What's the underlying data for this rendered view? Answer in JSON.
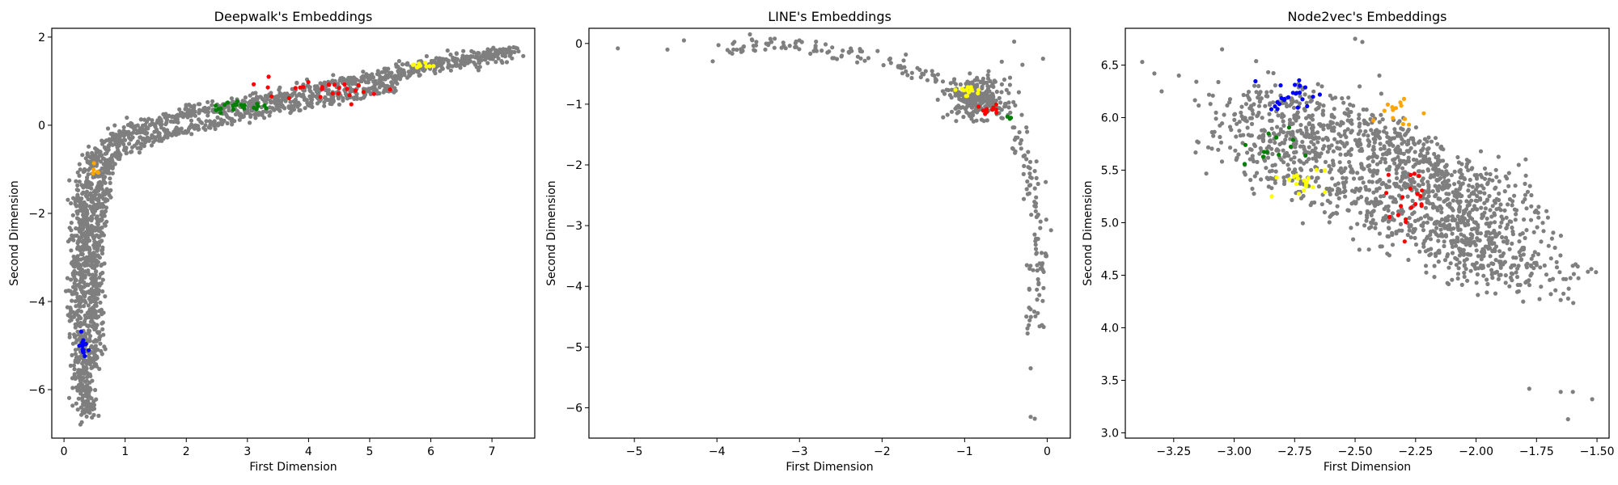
{
  "colors": {
    "background": "#7f7f7f",
    "blue": "#0000ff",
    "orange": "#ffa500",
    "yellow": "#ffff00",
    "green": "#008000",
    "red": "#ff0000"
  },
  "chart_data": [
    {
      "type": "scatter",
      "title": "Deepwalk's Embeddings",
      "xlabel": "First Dimension",
      "ylabel": "Second Dimension",
      "xlim": [
        -0.2,
        7.7
      ],
      "ylim": [
        -7.1,
        2.2
      ],
      "xticks": [
        0,
        1,
        2,
        3,
        4,
        5,
        6,
        7
      ],
      "yticks": [
        -6,
        -4,
        -2,
        0,
        2
      ],
      "xtick_labels": [
        "0",
        "1",
        "2",
        "3",
        "4",
        "5",
        "6",
        "7"
      ],
      "ytick_labels": [
        "−6",
        "−4",
        "−2",
        "0",
        "2"
      ],
      "grid": false,
      "series": [
        {
          "color": "#7f7f7f",
          "structure": "curve_band",
          "anchors": [
            [
              0.38,
              -6.6
            ],
            [
              0.3,
              -5.5
            ],
            [
              0.25,
              -4.5
            ],
            [
              0.25,
              -3.5
            ],
            [
              0.3,
              -2.5
            ],
            [
              0.35,
              -1.5
            ],
            [
              0.45,
              -0.8
            ],
            [
              0.7,
              -0.45
            ],
            [
              1.0,
              -0.2
            ],
            [
              1.5,
              0.05
            ],
            [
              2.0,
              0.25
            ],
            [
              3.0,
              0.5
            ],
            [
              4.0,
              0.8
            ],
            [
              5.0,
              1.05
            ],
            [
              6.0,
              1.35
            ],
            [
              7.0,
              1.6
            ],
            [
              7.4,
              1.68
            ]
          ],
          "count": 1400,
          "spread": 0.09
        },
        {
          "color": "#7f7f7f",
          "structure": "curve_band",
          "anchors": [
            [
              0.5,
              -5.5
            ],
            [
              0.5,
              -4.5
            ],
            [
              0.5,
              -3.5
            ],
            [
              0.55,
              -2.5
            ],
            [
              0.6,
              -1.5
            ],
            [
              0.7,
              -0.9
            ],
            [
              1.0,
              -0.55
            ],
            [
              1.5,
              -0.25
            ],
            [
              2.5,
              0.05
            ],
            [
              3.5,
              0.35
            ],
            [
              4.5,
              0.65
            ],
            [
              5.4,
              0.9
            ]
          ],
          "count": 700,
          "spread": 0.07
        },
        {
          "color": "#0000ff",
          "structure": "cluster",
          "center": [
            0.3,
            -5.0
          ],
          "sd": [
            0.04,
            0.18
          ],
          "count": 14
        },
        {
          "color": "#ffa500",
          "structure": "cluster",
          "center": [
            0.55,
            -1.0
          ],
          "sd": [
            0.04,
            0.1
          ],
          "count": 5
        },
        {
          "color": "#ffff00",
          "structure": "cluster",
          "center": [
            5.85,
            1.35
          ],
          "sd": [
            0.08,
            0.04
          ],
          "count": 10
        },
        {
          "color": "#008000",
          "structure": "cluster",
          "center": [
            2.9,
            0.42
          ],
          "sd": [
            0.3,
            0.06
          ],
          "count": 22
        },
        {
          "color": "#ff0000",
          "structure": "cluster",
          "center": [
            4.3,
            0.85
          ],
          "sd": [
            0.65,
            0.12
          ],
          "count": 26
        }
      ]
    },
    {
      "type": "scatter",
      "title": "LINE's Embeddings",
      "xlabel": "First Dimension",
      "ylabel": "Second Dimension",
      "xlim": [
        -5.55,
        0.28
      ],
      "ylim": [
        -6.5,
        0.25
      ],
      "xticks": [
        -5,
        -4,
        -3,
        -2,
        -1,
        0
      ],
      "yticks": [
        -6,
        -5,
        -4,
        -3,
        -2,
        -1,
        0
      ],
      "xtick_labels": [
        "−5",
        "−4",
        "−3",
        "−2",
        "−1",
        "0"
      ],
      "ytick_labels": [
        "−6",
        "−5",
        "−4",
        "−3",
        "−2",
        "−1",
        "0"
      ],
      "grid": false,
      "series": [
        {
          "color": "#7f7f7f",
          "structure": "points",
          "points": [
            [
              -5.2,
              -0.08
            ],
            [
              -4.6,
              -0.1
            ],
            [
              -4.4,
              0.05
            ],
            [
              -0.4,
              0.03
            ],
            [
              -0.05,
              -0.25
            ],
            [
              -0.3,
              -0.35
            ],
            [
              -0.55,
              -0.3
            ],
            [
              -3.8,
              -0.1
            ],
            [
              -3.6,
              0.15
            ],
            [
              -3.3,
              0.08
            ],
            [
              -3.0,
              0.05
            ],
            [
              -2.8,
              0.03
            ],
            [
              -0.2,
              -6.15
            ],
            [
              -0.15,
              -6.18
            ],
            [
              -0.2,
              -5.35
            ]
          ]
        },
        {
          "color": "#7f7f7f",
          "structure": "curve_band",
          "anchors": [
            [
              -3.9,
              -0.1
            ],
            [
              -3.5,
              -0.05
            ],
            [
              -3.0,
              -0.05
            ],
            [
              -2.5,
              -0.15
            ],
            [
              -2.0,
              -0.3
            ],
            [
              -1.6,
              -0.45
            ],
            [
              -1.2,
              -0.7
            ],
            [
              -0.9,
              -0.85
            ],
            [
              -0.6,
              -1.1
            ],
            [
              -0.45,
              -1.3
            ],
            [
              -0.35,
              -1.6
            ],
            [
              -0.25,
              -2.0
            ],
            [
              -0.15,
              -2.6
            ],
            [
              -0.1,
              -3.2
            ],
            [
              -0.1,
              -3.8
            ],
            [
              -0.12,
              -4.4
            ],
            [
              -0.15,
              -4.8
            ]
          ],
          "count": 240,
          "spread": 0.07
        },
        {
          "color": "#7f7f7f",
          "structure": "cluster",
          "center": [
            -0.85,
            -0.9
          ],
          "sd": [
            0.17,
            0.16
          ],
          "count": 240
        },
        {
          "color": "#ffff00",
          "structure": "cluster",
          "center": [
            -0.95,
            -0.78
          ],
          "sd": [
            0.1,
            0.05
          ],
          "count": 14
        },
        {
          "color": "#ff0000",
          "structure": "cluster",
          "center": [
            -0.7,
            -1.1
          ],
          "sd": [
            0.08,
            0.04
          ],
          "count": 10
        },
        {
          "color": "#008000",
          "structure": "cluster",
          "center": [
            -0.45,
            -1.25
          ],
          "sd": [
            0.04,
            0.03
          ],
          "count": 3
        }
      ]
    },
    {
      "type": "scatter",
      "title": "Node2vec's Embeddings",
      "xlabel": "First Dimension",
      "ylabel": "Second Dimension",
      "xlim": [
        -3.45,
        -1.45
      ],
      "ylim": [
        2.95,
        6.85
      ],
      "xticks": [
        -3.25,
        -3.0,
        -2.75,
        -2.5,
        -2.25,
        -2.0,
        -1.75,
        -1.5
      ],
      "yticks": [
        3.0,
        3.5,
        4.0,
        4.5,
        5.0,
        5.5,
        6.0,
        6.5
      ],
      "xtick_labels": [
        "−3.25",
        "−3.00",
        "−2.75",
        "−2.50",
        "−2.25",
        "−2.00",
        "−1.75",
        "−1.50"
      ],
      "ytick_labels": [
        "3.0",
        "3.5",
        "4.0",
        "4.5",
        "5.0",
        "5.5",
        "6.0",
        "6.5"
      ],
      "grid": false,
      "series": [
        {
          "color": "#7f7f7f",
          "structure": "points",
          "points": [
            [
              -3.38,
              6.53
            ],
            [
              -3.33,
              6.42
            ],
            [
              -3.3,
              6.25
            ],
            [
              -1.78,
              3.42
            ],
            [
              -1.65,
              3.39
            ],
            [
              -1.6,
              3.39
            ],
            [
              -1.52,
              3.32
            ],
            [
              -1.62,
              3.13
            ],
            [
              -2.5,
              6.75
            ],
            [
              -2.47,
              6.72
            ],
            [
              -2.4,
              6.4
            ],
            [
              -3.05,
              6.65
            ]
          ]
        },
        {
          "color": "#7f7f7f",
          "structure": "curve_band",
          "anchors": [
            [
              -3.0,
              5.9
            ],
            [
              -2.8,
              5.65
            ],
            [
              -2.6,
              5.35
            ],
            [
              -2.4,
              5.15
            ],
            [
              -2.2,
              4.95
            ],
            [
              -2.0,
              4.75
            ],
            [
              -1.85,
              4.55
            ],
            [
              -1.75,
              4.45
            ]
          ],
          "count": 650,
          "spread": 0.13
        },
        {
          "color": "#7f7f7f",
          "structure": "curve_band",
          "anchors": [
            [
              -2.9,
              6.2
            ],
            [
              -2.7,
              6.0
            ],
            [
              -2.5,
              5.75
            ],
            [
              -2.3,
              5.6
            ],
            [
              -2.1,
              5.4
            ],
            [
              -2.0,
              5.25
            ],
            [
              -1.9,
              5.05
            ]
          ],
          "count": 650,
          "spread": 0.13
        },
        {
          "color": "#7f7f7f",
          "structure": "curve_band",
          "anchors": [
            [
              -2.35,
              5.9
            ],
            [
              -2.25,
              5.6
            ],
            [
              -2.15,
              5.3
            ],
            [
              -2.05,
              5.0
            ],
            [
              -2.0,
              4.7
            ],
            [
              -2.05,
              4.5
            ]
          ],
          "count": 300,
          "spread": 0.08
        },
        {
          "color": "#0000ff",
          "structure": "cluster",
          "center": [
            -2.77,
            6.22
          ],
          "sd": [
            0.06,
            0.1
          ],
          "count": 24
        },
        {
          "color": "#ffa500",
          "structure": "cluster",
          "center": [
            -2.3,
            6.05
          ],
          "sd": [
            0.04,
            0.08
          ],
          "count": 14
        },
        {
          "color": "#ffff00",
          "structure": "cluster",
          "center": [
            -2.74,
            5.38
          ],
          "sd": [
            0.06,
            0.07
          ],
          "count": 18
        },
        {
          "color": "#008000",
          "structure": "cluster",
          "center": [
            -2.86,
            5.72
          ],
          "sd": [
            0.07,
            0.08
          ],
          "count": 12
        },
        {
          "color": "#ff0000",
          "structure": "cluster",
          "center": [
            -2.3,
            5.25
          ],
          "sd": [
            0.07,
            0.15
          ],
          "count": 20
        }
      ]
    }
  ]
}
